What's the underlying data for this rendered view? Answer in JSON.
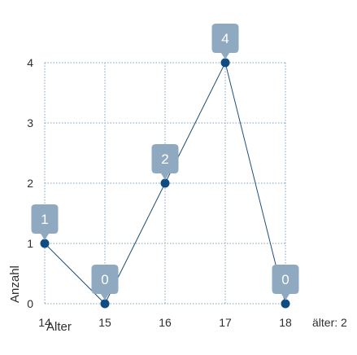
{
  "chart_data": {
    "type": "line",
    "x": [
      14,
      15,
      16,
      17,
      18
    ],
    "series": [
      {
        "values": [
          1,
          0,
          2,
          4,
          0
        ]
      }
    ],
    "xlabel": "Alter",
    "ylabel": "Anzahl",
    "x_ticks": [
      "14",
      "15",
      "16",
      "17",
      "18"
    ],
    "y_ticks": [
      "0",
      "1",
      "2",
      "3",
      "4"
    ],
    "xlim": [
      14,
      18
    ],
    "ylim": [
      0,
      4
    ],
    "grid": true,
    "data_labels": true,
    "axis_note": "älter: 2",
    "colors": {
      "line": "#1f4e79",
      "marker": "#0f4c81",
      "callout": "#8fa9c0",
      "grid": "#7f9fc0",
      "text": "#2f2f2f"
    }
  }
}
